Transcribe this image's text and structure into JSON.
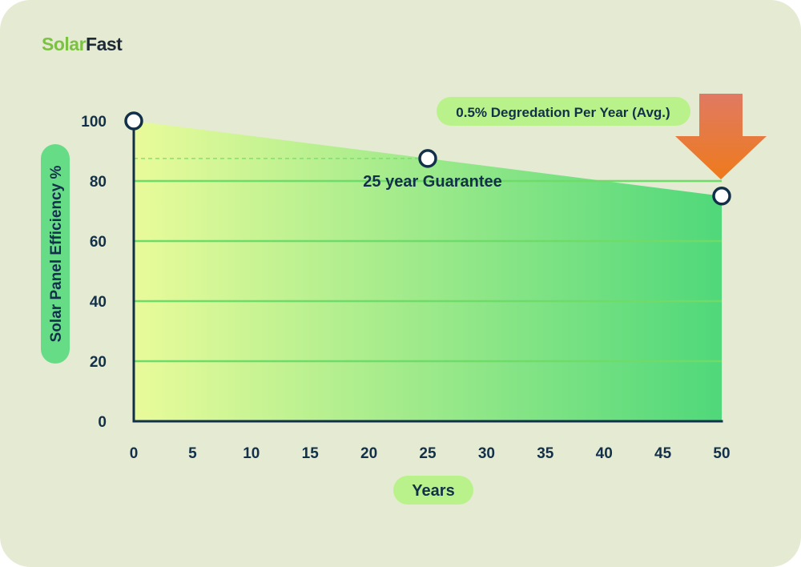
{
  "brand": {
    "name_part1": "Solar",
    "name_part2": "Fast"
  },
  "colors": {
    "background": "#e5ead3",
    "axis": "#13304a",
    "grid": "#6fdc6a",
    "fill_start": "#e9fb9a",
    "fill_end": "#4fd87a",
    "arrow": "#e8783f",
    "pill": "#b9f28a"
  },
  "chart_data": {
    "type": "area",
    "x": [
      0,
      25,
      50
    ],
    "series": [
      {
        "values": [
          100,
          87.5,
          75
        ]
      }
    ],
    "xlabel": "Years",
    "ylabel": "Solar Panel Efficiency %",
    "xticks": [
      "0",
      "5",
      "10",
      "15",
      "20",
      "25",
      "30",
      "35",
      "40",
      "45",
      "50"
    ],
    "yticks": [
      "0",
      "20",
      "40",
      "60",
      "80",
      "100"
    ],
    "xlim": [
      0,
      50
    ],
    "ylim": [
      0,
      100
    ],
    "grid": true,
    "annotations": [
      {
        "text": "25 year Guarantee",
        "x": 25,
        "y": 87.5
      },
      {
        "text": "0.5% Degredation Per Year (Avg.)",
        "x": 50,
        "y": 75
      }
    ]
  }
}
